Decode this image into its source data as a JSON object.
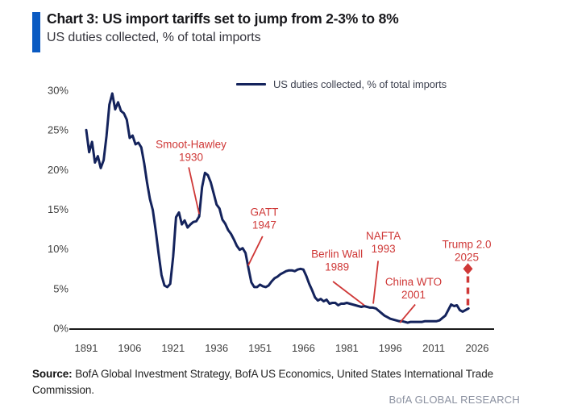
{
  "page": {
    "title": "Chart 3: US import tariffs set to jump from 2-3% to 8%",
    "subtitle": "US duties collected, % of total imports",
    "source_label": "Source:",
    "source_text": " BofA Global Investment Strategy, BofA US Economics, United States International Trade Commission.",
    "watermark": "BofA GLOBAL RESEARCH"
  },
  "legend": {
    "label": "US duties collected, % of total imports"
  },
  "colors": {
    "line_navy": "#14235c",
    "annotation_red": "#cf3837",
    "accent_blue": "#0a5ac2",
    "axis_line": "#1a1a1a",
    "tick_text": "#3f3f3f",
    "watermark_gray": "#8b91a0"
  },
  "chart_data": {
    "type": "line",
    "title": "Chart 3: US import tariffs set to jump from 2-3% to 8%",
    "subtitle": "US duties collected, % of total imports",
    "xlabel": "",
    "ylabel": "",
    "xlim": [
      1888,
      2032
    ],
    "ylim": [
      0,
      30
    ],
    "grid": false,
    "legend_position": "top-center",
    "x_ticks": [
      1891,
      1906,
      1921,
      1936,
      1951,
      1966,
      1981,
      1996,
      2011,
      2026
    ],
    "y_ticks": [
      {
        "value": 0,
        "label": "0%"
      },
      {
        "value": 5,
        "label": "5%"
      },
      {
        "value": 10,
        "label": "10%"
      },
      {
        "value": 15,
        "label": "15%"
      },
      {
        "value": 20,
        "label": "20%"
      },
      {
        "value": 25,
        "label": "25%"
      },
      {
        "value": 30,
        "label": "30%"
      }
    ],
    "series": [
      {
        "name": "US duties collected, % of total imports",
        "points": [
          [
            1891,
            25.0
          ],
          [
            1892,
            22.2
          ],
          [
            1893,
            23.5
          ],
          [
            1894,
            20.9
          ],
          [
            1895,
            21.7
          ],
          [
            1896,
            20.2
          ],
          [
            1897,
            21.2
          ],
          [
            1898,
            24.2
          ],
          [
            1899,
            28.2
          ],
          [
            1900,
            29.6
          ],
          [
            1901,
            27.6
          ],
          [
            1902,
            28.5
          ],
          [
            1903,
            27.4
          ],
          [
            1904,
            27.1
          ],
          [
            1905,
            26.3
          ],
          [
            1906,
            24.0
          ],
          [
            1907,
            24.3
          ],
          [
            1908,
            23.2
          ],
          [
            1909,
            23.4
          ],
          [
            1910,
            22.8
          ],
          [
            1911,
            20.8
          ],
          [
            1912,
            18.4
          ],
          [
            1913,
            16.3
          ],
          [
            1914,
            14.9
          ],
          [
            1915,
            12.3
          ],
          [
            1916,
            9.4
          ],
          [
            1917,
            6.7
          ],
          [
            1918,
            5.4
          ],
          [
            1919,
            5.2
          ],
          [
            1920,
            5.6
          ],
          [
            1921,
            9.0
          ],
          [
            1922,
            14.0
          ],
          [
            1923,
            14.6
          ],
          [
            1924,
            13.1
          ],
          [
            1925,
            13.6
          ],
          [
            1926,
            12.7
          ],
          [
            1927,
            13.1
          ],
          [
            1928,
            13.4
          ],
          [
            1929,
            13.5
          ],
          [
            1930,
            14.1
          ],
          [
            1931,
            17.8
          ],
          [
            1932,
            19.6
          ],
          [
            1933,
            19.3
          ],
          [
            1934,
            18.4
          ],
          [
            1935,
            17.0
          ],
          [
            1936,
            15.6
          ],
          [
            1937,
            15.1
          ],
          [
            1938,
            13.7
          ],
          [
            1939,
            13.2
          ],
          [
            1940,
            12.4
          ],
          [
            1941,
            11.9
          ],
          [
            1942,
            11.2
          ],
          [
            1943,
            10.4
          ],
          [
            1944,
            9.9
          ],
          [
            1945,
            10.1
          ],
          [
            1946,
            9.5
          ],
          [
            1947,
            7.6
          ],
          [
            1948,
            5.8
          ],
          [
            1949,
            5.2
          ],
          [
            1950,
            5.2
          ],
          [
            1951,
            5.5
          ],
          [
            1952,
            5.3
          ],
          [
            1953,
            5.2
          ],
          [
            1954,
            5.4
          ],
          [
            1955,
            5.9
          ],
          [
            1956,
            6.3
          ],
          [
            1957,
            6.5
          ],
          [
            1958,
            6.8
          ],
          [
            1959,
            7.0
          ],
          [
            1960,
            7.2
          ],
          [
            1961,
            7.3
          ],
          [
            1962,
            7.3
          ],
          [
            1963,
            7.2
          ],
          [
            1964,
            7.4
          ],
          [
            1965,
            7.5
          ],
          [
            1966,
            7.4
          ],
          [
            1967,
            6.6
          ],
          [
            1968,
            5.6
          ],
          [
            1969,
            4.8
          ],
          [
            1970,
            3.9
          ],
          [
            1971,
            3.5
          ],
          [
            1972,
            3.7
          ],
          [
            1973,
            3.4
          ],
          [
            1974,
            3.6
          ],
          [
            1975,
            3.1
          ],
          [
            1976,
            3.2
          ],
          [
            1977,
            3.2
          ],
          [
            1978,
            2.9
          ],
          [
            1979,
            3.1
          ],
          [
            1980,
            3.1
          ],
          [
            1981,
            3.2
          ],
          [
            1982,
            3.1
          ],
          [
            1983,
            3.0
          ],
          [
            1984,
            2.9
          ],
          [
            1985,
            2.8
          ],
          [
            1986,
            2.7
          ],
          [
            1987,
            2.8
          ],
          [
            1988,
            2.7
          ],
          [
            1989,
            2.6
          ],
          [
            1990,
            2.6
          ],
          [
            1991,
            2.5
          ],
          [
            1992,
            2.2
          ],
          [
            1993,
            1.9
          ],
          [
            1994,
            1.6
          ],
          [
            1995,
            1.4
          ],
          [
            1996,
            1.2
          ],
          [
            1997,
            1.1
          ],
          [
            1998,
            1.0
          ],
          [
            1999,
            0.9
          ],
          [
            2000,
            0.9
          ],
          [
            2001,
            0.8
          ],
          [
            2002,
            0.7
          ],
          [
            2003,
            0.8
          ],
          [
            2004,
            0.8
          ],
          [
            2005,
            0.8
          ],
          [
            2006,
            0.8
          ],
          [
            2007,
            0.8
          ],
          [
            2008,
            0.9
          ],
          [
            2009,
            0.9
          ],
          [
            2010,
            0.9
          ],
          [
            2011,
            0.9
          ],
          [
            2012,
            0.9
          ],
          [
            2013,
            1.0
          ],
          [
            2014,
            1.3
          ],
          [
            2015,
            1.6
          ],
          [
            2016,
            2.3
          ],
          [
            2017,
            3.0
          ],
          [
            2018,
            2.8
          ],
          [
            2019,
            2.9
          ],
          [
            2020,
            2.3
          ],
          [
            2021,
            2.1
          ],
          [
            2022,
            2.3
          ],
          [
            2023,
            2.5
          ]
        ]
      }
    ],
    "annotations": [
      {
        "id": "smoot-hawley",
        "lines": [
          "Smoot-Hawley",
          "1930"
        ],
        "text_year": 1927.2,
        "text_pct": 22.4,
        "line_from": [
          1926.4,
          20.3
        ],
        "line_to": [
          1930.0,
          14.4
        ]
      },
      {
        "id": "gatt",
        "lines": [
          "GATT",
          "1947"
        ],
        "text_year": 1952.5,
        "text_pct": 13.9,
        "line_from": [
          1951.9,
          11.6
        ],
        "line_to": [
          1946.9,
          7.9
        ]
      },
      {
        "id": "berlin-wall",
        "lines": [
          "Berlin Wall",
          "1989"
        ],
        "text_year": 1977.6,
        "text_pct": 8.6,
        "line_from": [
          1976.2,
          5.9
        ],
        "line_to": [
          1987.0,
          2.9
        ]
      },
      {
        "id": "nafta",
        "lines": [
          "NAFTA",
          "1993"
        ],
        "text_year": 1993.6,
        "text_pct": 10.9,
        "line_from": [
          1991.8,
          8.5
        ],
        "line_to": [
          1990.1,
          3.1
        ]
      },
      {
        "id": "china-wto",
        "lines": [
          "China WTO",
          "2001"
        ],
        "text_year": 2004.0,
        "text_pct": 5.1,
        "line_from": [
          2004.6,
          3.0
        ],
        "line_to": [
          1999.3,
          0.7
        ]
      }
    ],
    "projection": {
      "id": "trump-2-0",
      "lines": [
        "Trump 2.0",
        "2025"
      ],
      "text_year": 2022.4,
      "text_pct": 9.8,
      "arrow_year": 2022.8,
      "dash_from_pct": 2.9,
      "dash_to_pct": 6.7,
      "diamond_pct": 7.5,
      "target_pct": 8.0
    }
  }
}
